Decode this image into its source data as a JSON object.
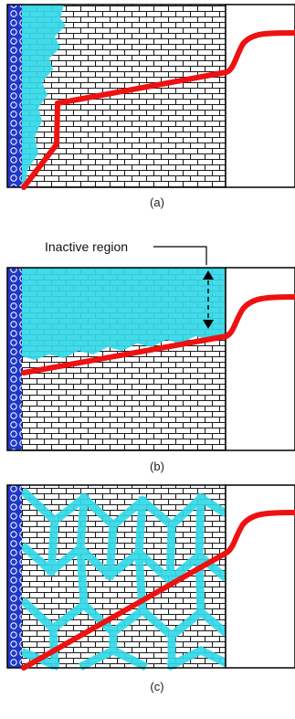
{
  "panels": [
    {
      "caption": "(a)",
      "pattern": "left-wedge"
    },
    {
      "caption": "(b)",
      "pattern": "top-band"
    },
    {
      "caption": "(c)",
      "pattern": "network"
    }
  ],
  "annotation": {
    "label": "Inactive region"
  },
  "colors": {
    "brick_fill": "#ffffff",
    "brick_line": "#1a1a1a",
    "active_cell": "#33d8e8",
    "electrode_blue": "#2038c8",
    "reaction_front": "#ee1111",
    "frame": "#000000"
  },
  "icons": {
    "electrode": "beaded-electrode-strip",
    "front": "reaction-front-curve",
    "bracket": "double-headed-arrow-icon"
  }
}
